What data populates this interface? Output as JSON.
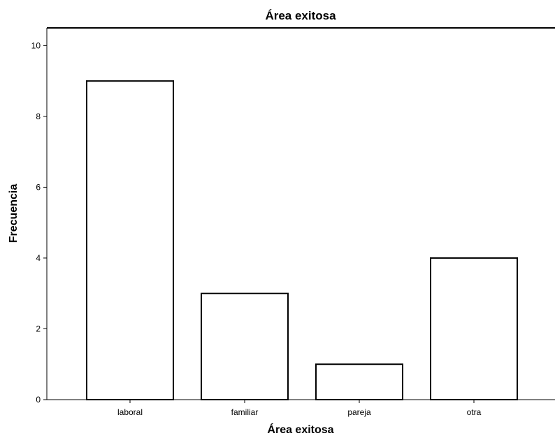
{
  "chart_data": {
    "type": "bar",
    "title": "Área exitosa",
    "xlabel": "Área exitosa",
    "ylabel": "Frecuencia",
    "categories": [
      "laboral",
      "familiar",
      "pareja",
      "otra"
    ],
    "values": [
      9,
      3,
      1,
      4
    ],
    "ylim": [
      0,
      10.5
    ],
    "yticks": [
      0,
      2,
      4,
      6,
      8,
      10
    ],
    "grid": false,
    "colors": {
      "bar_fill": "#ffffff",
      "bar_stroke": "#000000"
    }
  }
}
